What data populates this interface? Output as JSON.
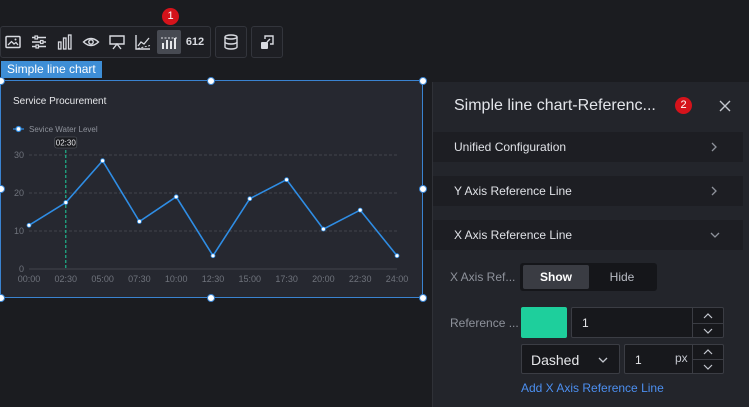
{
  "toolbar": {
    "buttons": [
      "image-icon",
      "sliders-icon",
      "bar-chart-icon",
      "eye-icon",
      "screen-icon",
      "axis-chart-icon",
      "reference-line-chart-icon",
      "number-612-icon",
      "database-icon",
      "interaction-icon"
    ],
    "number_button_label": "612",
    "badge_1": "1"
  },
  "widget": {
    "tag": "Simple line chart",
    "chart_title": "Service Procurement"
  },
  "chart_data": {
    "type": "line",
    "title": "Service Procurement",
    "legend": "Sevice Water Level",
    "legend_position": "top-left",
    "categories": [
      "00:00",
      "02:30",
      "05:00",
      "07:30",
      "10:00",
      "12:30",
      "15:00",
      "17:30",
      "20:00",
      "22:30",
      "24:00"
    ],
    "series": [
      {
        "name": "Sevice Water Level",
        "x": [
          0,
          1,
          2,
          3,
          4,
          5,
          6,
          7,
          8,
          9,
          10
        ],
        "values": [
          11.5,
          17.5,
          28.5,
          12.5,
          19,
          3.5,
          18.5,
          23.5,
          10.5,
          15.5,
          3.5
        ]
      }
    ],
    "y_ticks": [
      "0",
      "10",
      "20",
      "30"
    ],
    "ylim": [
      0,
      30
    ],
    "grid": "dashed horizontal",
    "reference_line": {
      "x": 1,
      "label": "02:30",
      "color": "#1ecf9c"
    },
    "line_color": "#2f8de4"
  },
  "panel": {
    "title": "Simple line chart-Referenc...",
    "badge_2": "2",
    "sections": [
      {
        "label": "Unified Configuration",
        "expanded": false
      },
      {
        "label": "Y Axis Reference Line",
        "expanded": false
      },
      {
        "label": "X Axis Reference Line",
        "expanded": true
      }
    ],
    "x_axis_ref_label": "X Axis Ref...",
    "toggle": {
      "show": "Show",
      "hide": "Hide",
      "selected": "Show"
    },
    "reference_label": "Reference ...",
    "reference_color": "#1ecf9c",
    "reference_value": "1",
    "line_style": "Dashed",
    "width_value": "1",
    "width_unit": "px",
    "add_link": "Add X Axis Reference Line"
  }
}
